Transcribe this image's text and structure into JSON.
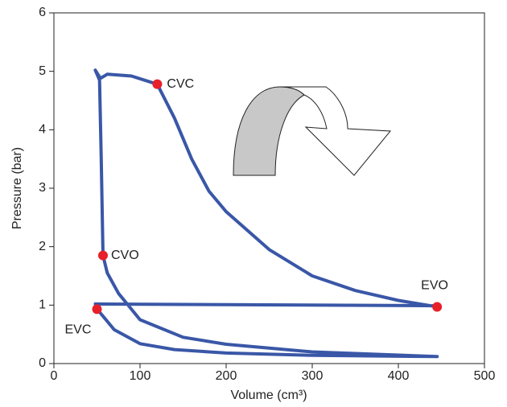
{
  "chart_data": {
    "type": "line",
    "x_label": "Volume (cm³)",
    "y_label": "Pressure (bar)",
    "xlim": [
      0,
      500
    ],
    "ylim": [
      0,
      6
    ],
    "xticks": [
      0,
      100,
      200,
      300,
      400,
      500
    ],
    "yticks": [
      0,
      1,
      2,
      3,
      4,
      5,
      6
    ],
    "series": [
      {
        "color": "#3a57a7",
        "x": [
          48,
          445,
          null,
          445,
          300,
          200,
          140,
          100,
          70,
          52,
          null,
          445,
          300,
          200,
          150,
          100,
          75,
          62,
          57,
          55,
          53,
          48,
          54,
          62,
          90,
          120,
          140,
          160,
          180,
          200,
          250,
          300,
          350,
          400,
          445
        ],
        "values": [
          1.02,
          0.99,
          null,
          0.12,
          0.14,
          0.18,
          0.24,
          0.34,
          0.58,
          0.9,
          null,
          0.12,
          0.2,
          0.33,
          0.45,
          0.75,
          1.2,
          1.55,
          1.85,
          3.5,
          4.85,
          5.02,
          4.88,
          4.95,
          4.92,
          4.78,
          4.2,
          3.5,
          2.95,
          2.6,
          1.95,
          1.5,
          1.25,
          1.08,
          0.97
        ]
      }
    ],
    "points": [
      {
        "label": "CVC",
        "x": 120,
        "y": 4.78
      },
      {
        "label": "CVO",
        "x": 57,
        "y": 1.85
      },
      {
        "label": "EVO",
        "x": 445,
        "y": 0.97
      },
      {
        "label": "EVC",
        "x": 50,
        "y": 0.93
      }
    ],
    "point_color": "#e8202a"
  }
}
